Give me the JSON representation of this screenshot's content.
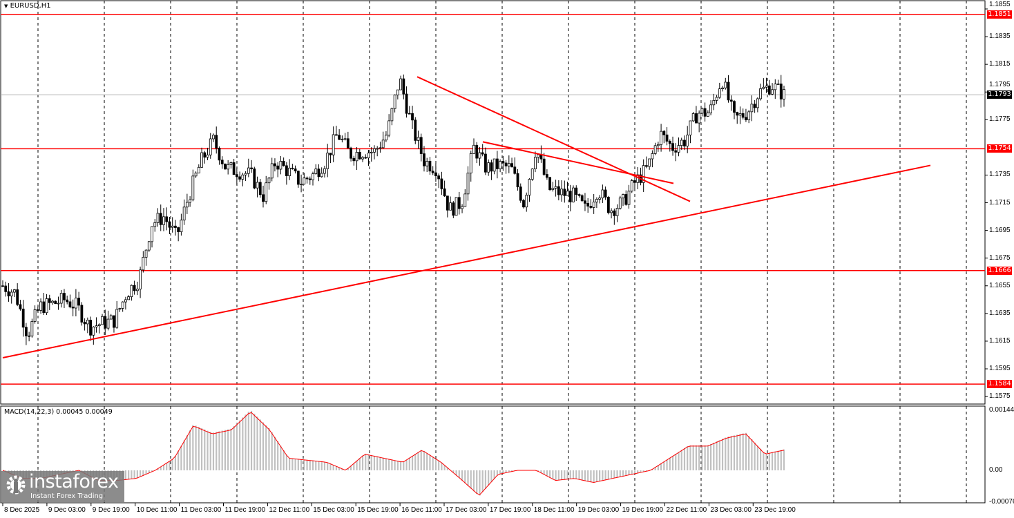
{
  "header": {
    "symbol": "EURUSD,H1",
    "menu_icon": "triangle-down-icon"
  },
  "macd_label": "MACD(14,22,3) 0.00045 0.00049",
  "logo": {
    "brand": "instaforex",
    "tagline": "Instant Forex Trading"
  },
  "colors": {
    "level": "#ff0000",
    "candle": "#000000",
    "macd_hist": "#c0c0c0",
    "macd_signal": "#ff0000",
    "current_price_tag": "#000000"
  },
  "chart_data": [
    {
      "type": "candlestick",
      "title": "EURUSD,H1",
      "ylim": [
        1.157,
        1.186
      ],
      "y_ticks": [
        "1.1855",
        "1.1835",
        "1.1815",
        "1.1795",
        "1.1775",
        "1.1735",
        "1.1715",
        "1.1695",
        "1.1675",
        "1.1655",
        "1.1635",
        "1.1615",
        "1.1595",
        "1.1575"
      ],
      "x_ticks": [
        "8 Dec 2025",
        "9 Dec 03:00",
        "9 Dec 19:00",
        "10 Dec 11:00",
        "11 Dec 03:00",
        "11 Dec 19:00",
        "12 Dec 11:00",
        "15 Dec 03:00",
        "15 Dec 19:00",
        "16 Dec 11:00",
        "17 Dec 03:00",
        "17 Dec 19:00",
        "18 Dec 11:00",
        "19 Dec 03:00",
        "19 Dec 19:00",
        "22 Dec 11:00",
        "23 Dec 03:00",
        "23 Dec 19:00"
      ],
      "horizontal_levels": [
        "1.1851",
        "1.1754",
        "1.1666",
        "1.1584"
      ],
      "current_price": "1.1793",
      "trend_lines": [
        {
          "from_price": 1.1603,
          "to_price": 1.1742,
          "from_time": "8 Dec 2025",
          "to_time": "after 23 Dec 19:00"
        },
        {
          "from_price": 1.1806,
          "to_price": 1.1716,
          "from_time": "16 Dec",
          "to_time": "22 Dec"
        },
        {
          "from_price": 1.1759,
          "to_price": 1.1729,
          "from_time": "17 Dec",
          "to_time": "22 Dec"
        }
      ],
      "close_path": [
        1.1655,
        1.165,
        1.162,
        1.164,
        1.1642,
        1.1645,
        1.164,
        1.1625,
        1.1628,
        1.163,
        1.165,
        1.166,
        1.17,
        1.1705,
        1.169,
        1.172,
        1.1745,
        1.176,
        1.174,
        1.1738,
        1.1735,
        1.172,
        1.1745,
        1.1738,
        1.173,
        1.1735,
        1.1745,
        1.1765,
        1.175,
        1.1752,
        1.1752,
        1.1765,
        1.1805,
        1.177,
        1.1745,
        1.174,
        1.171,
        1.1715,
        1.1755,
        1.174,
        1.1742,
        1.174,
        1.1715,
        1.1755,
        1.1725,
        1.1722,
        1.172,
        1.171,
        1.1725,
        1.171,
        1.1715,
        1.173,
        1.174,
        1.1765,
        1.1755,
        1.176,
        1.178,
        1.178,
        1.1805,
        1.1775,
        1.178,
        1.1795,
        1.18,
        1.1793
      ]
    },
    {
      "type": "bar+line",
      "title": "MACD(14,22,3)",
      "y_ticks": [
        "0.00144",
        "0.00",
        "-0.00076"
      ],
      "histogram_path": [
        0.0,
        -0.0002,
        -0.0002,
        -0.0001,
        0.0,
        -0.00025,
        -0.00025,
        -0.0002,
        0.0,
        0.0003,
        0.0011,
        0.0009,
        0.001,
        0.00145,
        0.001,
        0.0003,
        0.00025,
        0.0002,
        0.0,
        0.0004,
        0.0003,
        0.0002,
        0.0005,
        0.0002,
        -0.0002,
        -0.00062,
        -0.0001,
        0.0,
        0.0,
        -0.00025,
        -0.0002,
        -0.0003,
        -0.0002,
        -0.0001,
        0.0,
        0.0003,
        0.0006,
        0.0006,
        0.0008,
        0.0009,
        0.0004,
        0.0005
      ]
    }
  ]
}
